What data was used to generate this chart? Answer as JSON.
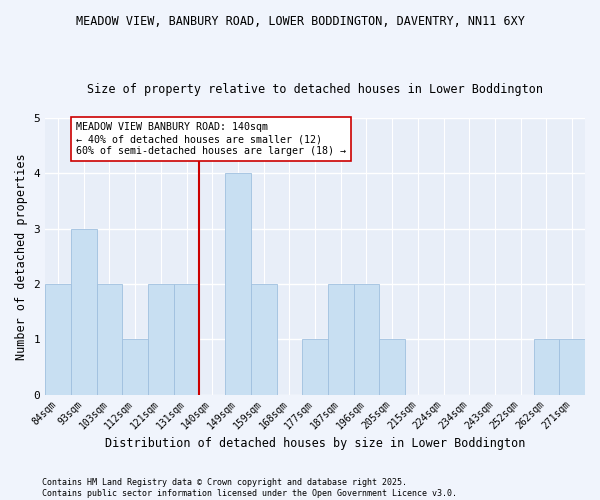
{
  "title1": "MEADOW VIEW, BANBURY ROAD, LOWER BODDINGTON, DAVENTRY, NN11 6XY",
  "title2": "Size of property relative to detached houses in Lower Boddington",
  "xlabel": "Distribution of detached houses by size in Lower Boddington",
  "ylabel": "Number of detached properties",
  "footer1": "Contains HM Land Registry data © Crown copyright and database right 2025.",
  "footer2": "Contains public sector information licensed under the Open Government Licence v3.0.",
  "categories": [
    "84sqm",
    "93sqm",
    "103sqm",
    "112sqm",
    "121sqm",
    "131sqm",
    "140sqm",
    "149sqm",
    "159sqm",
    "168sqm",
    "177sqm",
    "187sqm",
    "196sqm",
    "205sqm",
    "215sqm",
    "224sqm",
    "234sqm",
    "243sqm",
    "252sqm",
    "262sqm",
    "271sqm"
  ],
  "values": [
    2,
    3,
    2,
    1,
    2,
    2,
    0,
    4,
    2,
    0,
    1,
    2,
    2,
    1,
    0,
    0,
    0,
    0,
    0,
    1,
    1
  ],
  "highlight_index": 6,
  "bar_color": "#c8dff2",
  "bar_edge_color": "#a0c0df",
  "highlight_line_color": "#cc0000",
  "annotation_text": "MEADOW VIEW BANBURY ROAD: 140sqm\n← 40% of detached houses are smaller (12)\n60% of semi-detached houses are larger (18) →",
  "annotation_box_color": "#ffffff",
  "annotation_box_edge": "#cc0000",
  "ylim": [
    0,
    5
  ],
  "yticks": [
    0,
    1,
    2,
    3,
    4,
    5
  ],
  "bg_color": "#e8eef8",
  "fig_bg_color": "#f0f4fc",
  "grid_color": "#ffffff",
  "title1_fontsize": 8.5,
  "title2_fontsize": 8.5,
  "axis_label_fontsize": 8.5,
  "tick_fontsize": 7.0,
  "footer_fontsize": 6.0,
  "annotation_fontsize": 7.2
}
